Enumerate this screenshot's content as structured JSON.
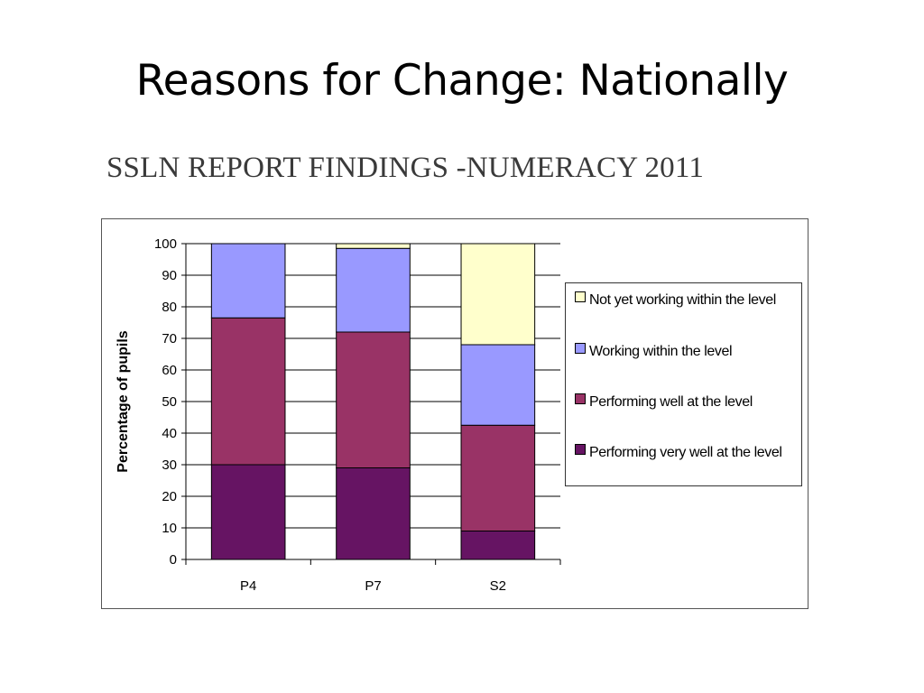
{
  "slide": {
    "title": "Reasons for Change: Nationally",
    "report_heading": "SSLN REPORT FINDINGS -NUMERACY 2011"
  },
  "chart_data": {
    "type": "bar",
    "stacked": true,
    "categories": [
      "P4",
      "P7",
      "S2"
    ],
    "ylabel": "Percentage of pupils",
    "xlabel": "",
    "ylim": [
      0,
      100
    ],
    "yticks": [
      0,
      10,
      20,
      30,
      40,
      50,
      60,
      70,
      80,
      90,
      100
    ],
    "grid": true,
    "legend_position": "right",
    "series": [
      {
        "name": "Performing very well at the level",
        "color": "#661463",
        "values": [
          30,
          29,
          9
        ]
      },
      {
        "name": "Performing well at the level",
        "color": "#993366",
        "values": [
          46.5,
          43,
          33.5
        ]
      },
      {
        "name": "Working within the level",
        "color": "#9999ff",
        "values": [
          23.5,
          26.5,
          25.5
        ]
      },
      {
        "name": "Not yet working within the level",
        "color": "#ffffcc",
        "values": [
          0,
          1.5,
          32
        ]
      }
    ],
    "legend_order": [
      3,
      2,
      1,
      0
    ]
  }
}
